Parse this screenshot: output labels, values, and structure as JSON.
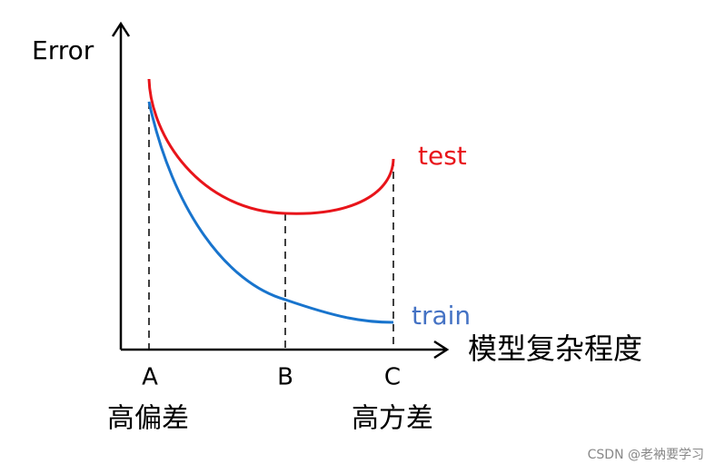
{
  "axes": {
    "y_label": "Error",
    "x_label": "模型复杂程度"
  },
  "curves": [
    {
      "label": "test"
    },
    {
      "label": "train"
    }
  ],
  "points": [
    {
      "label": "A",
      "description": "高偏差"
    },
    {
      "label": "B"
    },
    {
      "label": "C",
      "description": "高方差"
    }
  ],
  "watermark": "CSDN @老衲要学习"
}
